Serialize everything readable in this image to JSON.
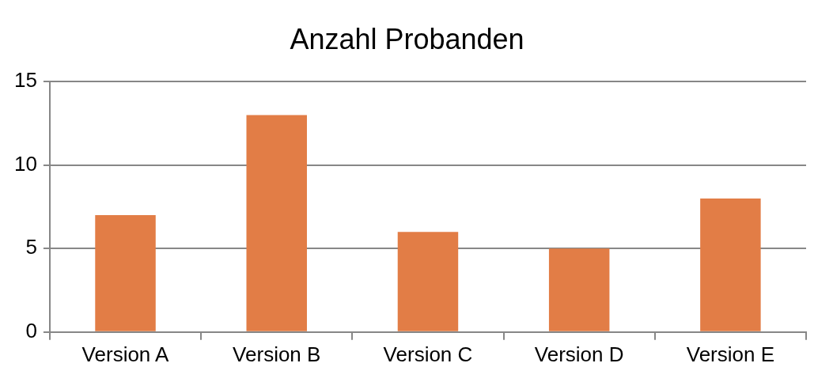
{
  "chart_data": {
    "type": "bar",
    "title": "Anzahl Probanden",
    "categories": [
      "Version A",
      "Version B",
      "Version C",
      "Version D",
      "Version E"
    ],
    "values": [
      7,
      13,
      6,
      5,
      8
    ],
    "color": "#e27d46",
    "ylim": [
      0,
      15
    ],
    "yticks": [
      0,
      5,
      10,
      15
    ],
    "grid": "y",
    "legend": false
  }
}
